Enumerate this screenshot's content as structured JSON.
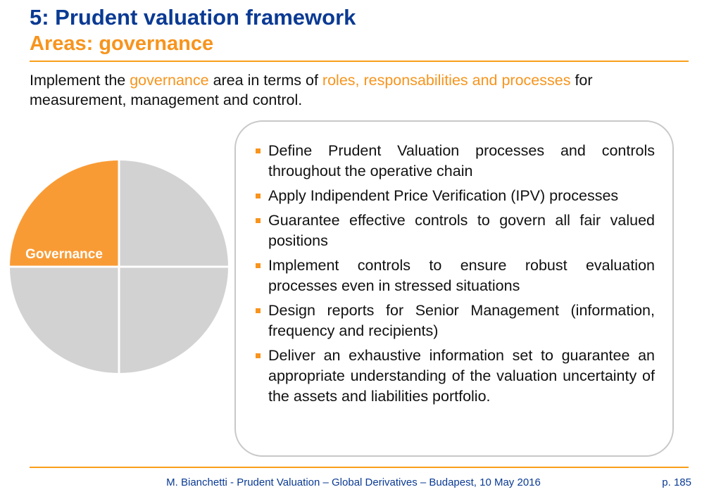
{
  "header": {
    "title": "5: Prudent valuation framework",
    "subtitle": "Areas: governance"
  },
  "intro": {
    "part1": "Implement the ",
    "highlight1": "governance",
    "part2": " area in terms of ",
    "highlight2": "roles, responsabilities and processes",
    "part3": " for measurement, management and control."
  },
  "pie": {
    "label": "Governance",
    "highlight_color": "#f99b35",
    "other_color": "#d2d2d2"
  },
  "bullets": [
    "Define Prudent Valuation processes and controls throughout the operative chain",
    "Apply Indipendent Price Verification (IPV) processes",
    "Guarantee effective controls to govern all fair valued positions",
    "Implement controls to ensure robust evaluation processes even in stressed situations",
    "Design reports for Senior Management (information, frequency and recipients)",
    "Deliver an exhaustive information set to guarantee an appropriate understanding of the valuation uncertainty of the assets and liabilities portfolio."
  ],
  "footer": {
    "text": "M. Bianchetti - Prudent Valuation – Global Derivatives – Budapest, 10 May 2016",
    "page": "p. 185"
  },
  "colors": {
    "title": "#0a3a93",
    "accent": "#f7941d"
  }
}
